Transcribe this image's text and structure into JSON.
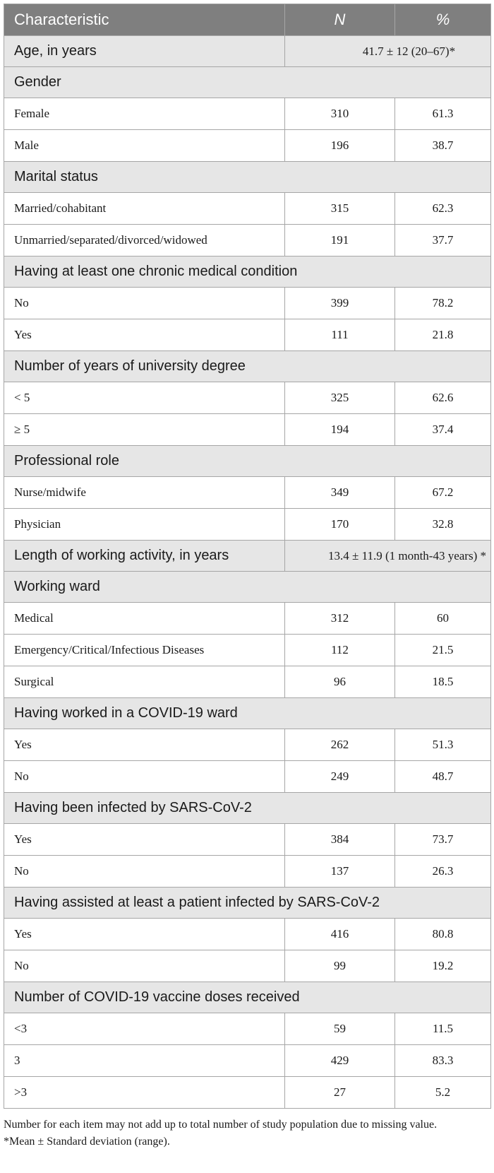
{
  "header": {
    "characteristic": "Characteristic",
    "n": "N",
    "percent": "%"
  },
  "age": {
    "label": "Age, in years",
    "value": "41.7 ± 12 (20–67)*"
  },
  "gender": {
    "title": "Gender",
    "rows": [
      {
        "label": "Female",
        "n": "310",
        "pct": "61.3"
      },
      {
        "label": "Male",
        "n": "196",
        "pct": "38.7"
      }
    ]
  },
  "marital": {
    "title": "Marital status",
    "rows": [
      {
        "label": "Married/cohabitant",
        "n": "315",
        "pct": "62.3"
      },
      {
        "label": "Unmarried/separated/divorced/widowed",
        "n": "191",
        "pct": "37.7"
      }
    ]
  },
  "chronic": {
    "title": "Having at least one chronic medical condition",
    "rows": [
      {
        "label": "No",
        "n": "399",
        "pct": "78.2"
      },
      {
        "label": "Yes",
        "n": "111",
        "pct": "21.8"
      }
    ]
  },
  "degree": {
    "title": "Number of years of university degree",
    "rows": [
      {
        "label": "< 5",
        "n": "325",
        "pct": "62.6"
      },
      {
        "label": "≥ 5",
        "n": "194",
        "pct": "37.4"
      }
    ]
  },
  "role": {
    "title": "Professional role",
    "rows": [
      {
        "label": "Nurse/midwife",
        "n": "349",
        "pct": "67.2"
      },
      {
        "label": "Physician",
        "n": "170",
        "pct": "32.8"
      }
    ]
  },
  "working_length": {
    "label": "Length of working activity, in years",
    "value": "13.4 ± 11.9 (1 month-43 years) *"
  },
  "ward": {
    "title": "Working ward",
    "rows": [
      {
        "label": "Medical",
        "n": "312",
        "pct": "60"
      },
      {
        "label": "Emergency/Critical/Infectious Diseases",
        "n": "112",
        "pct": "21.5"
      },
      {
        "label": "Surgical",
        "n": "96",
        "pct": "18.5"
      }
    ]
  },
  "covid_ward": {
    "title": "Having worked in a COVID-19 ward",
    "rows": [
      {
        "label": "Yes",
        "n": "262",
        "pct": "51.3"
      },
      {
        "label": "No",
        "n": "249",
        "pct": "48.7"
      }
    ]
  },
  "infected": {
    "title": "Having been infected by SARS-CoV-2",
    "rows": [
      {
        "label": "Yes",
        "n": "384",
        "pct": "73.7"
      },
      {
        "label": "No",
        "n": "137",
        "pct": "26.3"
      }
    ]
  },
  "assisted": {
    "title": "Having assisted at least a patient infected by SARS-CoV-2",
    "rows": [
      {
        "label": "Yes",
        "n": "416",
        "pct": "80.8"
      },
      {
        "label": "No",
        "n": "99",
        "pct": "19.2"
      }
    ]
  },
  "doses": {
    "title": "Number of COVID-19 vaccine doses received",
    "rows": [
      {
        "label": "<3",
        "n": "59",
        "pct": "11.5"
      },
      {
        "label": "3",
        "n": "429",
        "pct": "83.3"
      },
      {
        "label": ">3",
        "n": "27",
        "pct": "5.2"
      }
    ]
  },
  "notes": {
    "missing": "Number for each item may not add up to total number of study population due to missing value.",
    "mean": "*Mean ± Standard deviation (range)."
  }
}
